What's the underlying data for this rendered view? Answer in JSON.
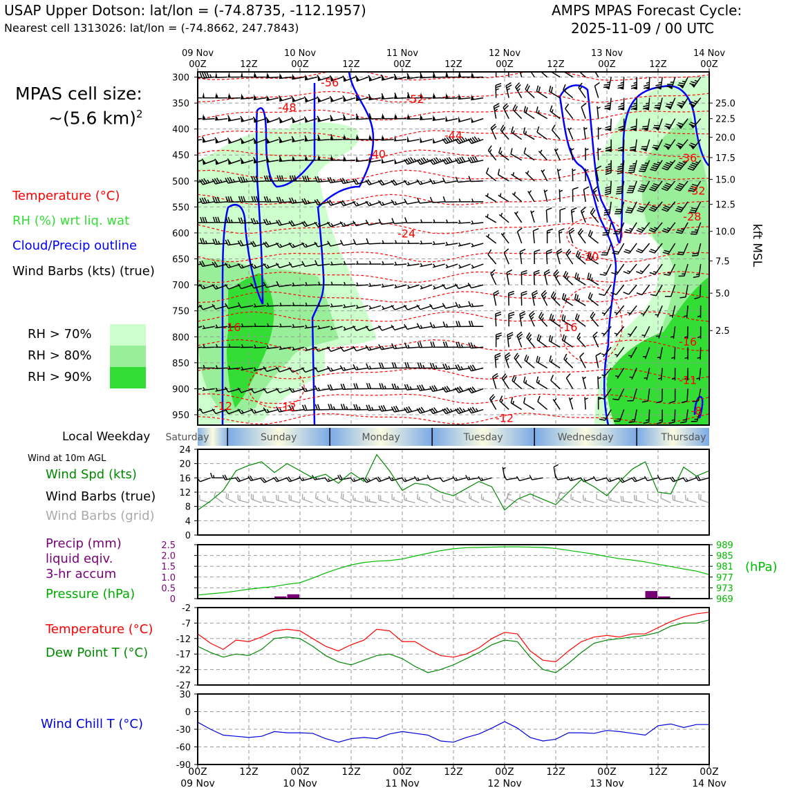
{
  "header": {
    "station_title": "USAP Upper Dotson: lat/lon = (-74.8735, -112.1957)",
    "nearest_cell": "Nearest cell 1313026: lat/lon = (-74.8662, 247.7843)",
    "cycle_title": "AMPS MPAS Forecast Cycle:",
    "cycle_time": "2025-11-09 / 00 UTC"
  },
  "left_panel": {
    "cell_size_label": "MPAS cell size:",
    "cell_size_value": "~(5.6 km)",
    "cell_size_exp": "2",
    "legend_temperature": "Temperature (°C)",
    "legend_rh": "RH (%) wrt liq. wat",
    "legend_cloud": "Cloud/Precip outline",
    "legend_wind": "Wind Barbs (kts) (true)",
    "rh70": "RH > 70%",
    "rh80": "RH > 80%",
    "rh90": "RH > 90%",
    "local_weekday": "Local Weekday",
    "wind10m": "Wind at 10m AGL",
    "wind_spd": "Wind Spd (kts)",
    "wind_barbs_true": "Wind Barbs (true)",
    "wind_barbs_grid": "Wind Barbs (grid)",
    "precip_l1": "Precip (mm)",
    "precip_l2": "liquid eqiv.",
    "precip_l3": "3-hr accum",
    "pressure": "Pressure (hPa)",
    "temp": "Temperature (°C)",
    "dewpoint": "Dew Point T (°C)",
    "windchill": "Wind Chill T (°C)"
  },
  "colors": {
    "temperature": "#ff0000",
    "rh": "#33cc33",
    "cloud": "#0000ff",
    "wind": "#000000",
    "grid_wind": "#aaaaaa",
    "precip": "#770077",
    "pressure": "#00bb00",
    "dewpoint": "#008800",
    "windchill": "#0000dd",
    "rh70": "#ccffcc",
    "rh80": "#99ee99",
    "rh90": "#33dd33"
  },
  "chart_data": {
    "time_axis": {
      "top_days": [
        "09 Nov",
        "10 Nov",
        "11 Nov",
        "12 Nov",
        "13 Nov",
        "14 Nov"
      ],
      "top_hours": [
        "00Z",
        "12Z",
        "00Z",
        "12Z",
        "00Z",
        "12Z",
        "00Z",
        "12Z",
        "00Z",
        "12Z",
        "00Z"
      ],
      "bottom_hours": [
        "00Z",
        "12Z",
        "00Z",
        "12Z",
        "00Z",
        "12Z",
        "00Z",
        "12Z",
        "00Z",
        "12Z",
        "00Z"
      ],
      "bottom_days": [
        "09 Nov",
        "10 Nov",
        "11 Nov",
        "12 Nov",
        "13 Nov",
        "14 Nov"
      ],
      "hours_range": [
        0,
        120
      ]
    },
    "profile": {
      "type": "heatmap",
      "pressure_ticks": [
        "300",
        "350",
        "400",
        "450",
        "500",
        "550",
        "600",
        "650",
        "700",
        "750",
        "800",
        "850",
        "900",
        "950"
      ],
      "kft_ticks": [
        "25.0",
        "22.5",
        "20.0",
        "17.5",
        "15.0",
        "12.5",
        "10.0",
        "7.5",
        "5.0",
        "2.5"
      ],
      "kft_pressure": [
        350,
        380,
        416,
        455,
        497,
        545,
        597,
        654,
        716,
        788,
        872
      ],
      "kft_label": "kft MSL",
      "ylim_hpa": [
        290,
        970
      ],
      "temperature_labels": [
        {
          "text": "-56",
          "hour": 31,
          "hpa": 310
        },
        {
          "text": "-52",
          "hour": 51,
          "hpa": 342
        },
        {
          "text": "-48",
          "hour": 21,
          "hpa": 358
        },
        {
          "text": "-44",
          "hour": 60,
          "hpa": 412
        },
        {
          "text": "-40",
          "hour": 42,
          "hpa": 448
        },
        {
          "text": "-36",
          "hour": 115,
          "hpa": 455
        },
        {
          "text": "-32",
          "hour": 117,
          "hpa": 518
        },
        {
          "text": "-28",
          "hour": 116,
          "hpa": 568
        },
        {
          "text": "-24",
          "hour": 49,
          "hpa": 601
        },
        {
          "text": "-20",
          "hour": 92,
          "hpa": 645
        },
        {
          "text": "-16",
          "hour": 8,
          "hpa": 781
        },
        {
          "text": "-16",
          "hour": 87,
          "hpa": 781
        },
        {
          "text": "-16",
          "hour": 115,
          "hpa": 809
        },
        {
          "text": "-11",
          "hour": 115,
          "hpa": 883
        },
        {
          "text": "-12",
          "hour": 6,
          "hpa": 933
        },
        {
          "text": "-12",
          "hour": 21,
          "hpa": 935
        },
        {
          "text": "-12",
          "hour": 72,
          "hpa": 956
        },
        {
          "text": "-8",
          "hour": 117,
          "hpa": 942
        }
      ]
    },
    "weekdays": [
      "Saturday",
      "Sunday",
      "Monday",
      "Tuesday",
      "Wednesday",
      "Thursday"
    ],
    "wind10m": {
      "type": "line",
      "yticks": [
        "24",
        "20",
        "16",
        "12",
        "8",
        "4",
        "0"
      ],
      "ylim": [
        0,
        24
      ],
      "hours": [
        0,
        3,
        6,
        9,
        12,
        15,
        18,
        21,
        24,
        27,
        30,
        33,
        36,
        39,
        42,
        45,
        48,
        51,
        54,
        57,
        60,
        63,
        66,
        69,
        72,
        75,
        78,
        81,
        84,
        87,
        90,
        93,
        96,
        99,
        102,
        105,
        108,
        111,
        114,
        117,
        120
      ],
      "speed": [
        7,
        9.5,
        12.5,
        18,
        19.5,
        20.5,
        17.5,
        20,
        18,
        16,
        17,
        14.5,
        17.5,
        15,
        22.5,
        18,
        12.5,
        14.5,
        14,
        12,
        11,
        13,
        15,
        13.5,
        7,
        10,
        11.5,
        10,
        8.5,
        12,
        15.5,
        13.5,
        11,
        15,
        18.5,
        20.5,
        12,
        11.5,
        19,
        16.5,
        18
      ],
      "direction": [
        300,
        250,
        270,
        260,
        250,
        255,
        245,
        250,
        250,
        255,
        260,
        250,
        260,
        250,
        245,
        250,
        255,
        250,
        255,
        260,
        250,
        255,
        260,
        255,
        350,
        260,
        255,
        260,
        350,
        260,
        255,
        250,
        255,
        250,
        245,
        250,
        255,
        260,
        250,
        250,
        255
      ]
    },
    "precip_pressure": {
      "type": "bar",
      "precip_yticks": [
        "2.5",
        "2.0",
        "1.5",
        "1.0",
        "0.5",
        "0"
      ],
      "precip_ylim": [
        0,
        2.5
      ],
      "pressure_yticks": [
        "989",
        "985",
        "981",
        "977",
        "973",
        "969"
      ],
      "pressure_ylim": [
        969,
        989
      ],
      "pressure_unit": "(hPa)",
      "precip_hours": [
        21,
        24,
        108,
        111
      ],
      "precip_mm": [
        0.1,
        0.2,
        0.35,
        0.1
      ],
      "pressure_hours": [
        0,
        3,
        6,
        9,
        12,
        15,
        18,
        21,
        24,
        27,
        30,
        33,
        36,
        39,
        42,
        45,
        48,
        51,
        54,
        57,
        60,
        63,
        66,
        69,
        72,
        75,
        78,
        81,
        84,
        87,
        90,
        93,
        96,
        99,
        102,
        105,
        108,
        111,
        114,
        117,
        120
      ],
      "pressure_hpa": [
        970.3,
        970.8,
        971.2,
        971.8,
        972.5,
        973.0,
        973.5,
        974.3,
        974.9,
        976.6,
        978.5,
        980.1,
        981.5,
        982.4,
        982.9,
        983.1,
        983.7,
        984.8,
        985.8,
        986.8,
        987.5,
        987.9,
        988.0,
        988.1,
        988.2,
        988.2,
        988.1,
        988.0,
        987.6,
        986.9,
        986.2,
        985.5,
        984.6,
        983.8,
        983.3,
        982.6,
        981.7,
        980.9,
        980.0,
        979.2,
        977.9
      ]
    },
    "temp_dew": {
      "type": "line",
      "yticks": [
        "-2",
        "-7",
        "-12",
        "-17",
        "-22",
        "-27"
      ],
      "ylim": [
        -27,
        -2
      ],
      "hours": [
        0,
        3,
        6,
        9,
        12,
        15,
        18,
        21,
        24,
        27,
        30,
        33,
        36,
        39,
        42,
        45,
        48,
        51,
        54,
        57,
        60,
        63,
        66,
        69,
        72,
        75,
        78,
        81,
        84,
        87,
        90,
        93,
        96,
        99,
        102,
        105,
        108,
        111,
        114,
        117,
        120
      ],
      "temperature": [
        -10.5,
        -13.5,
        -15.5,
        -12.5,
        -13,
        -11.5,
        -9.5,
        -9,
        -9.5,
        -12,
        -14.5,
        -16,
        -14,
        -12.5,
        -9,
        -9.5,
        -13,
        -13,
        -15.5,
        -17.5,
        -18,
        -17,
        -15,
        -12,
        -10,
        -10.5,
        -16,
        -19,
        -19.5,
        -16,
        -13,
        -11.5,
        -11,
        -11.5,
        -10.5,
        -10.5,
        -8.5,
        -6.5,
        -5,
        -4,
        -3.5
      ],
      "dewpoint": [
        -14.5,
        -16.5,
        -18,
        -17,
        -17.5,
        -15.5,
        -12,
        -11.5,
        -12,
        -14.5,
        -17.5,
        -19.5,
        -20.5,
        -19,
        -17.5,
        -17,
        -18.5,
        -21,
        -23,
        -22,
        -20.5,
        -18.5,
        -16.5,
        -14,
        -12.5,
        -13,
        -18,
        -22,
        -23,
        -20,
        -16.5,
        -13.5,
        -12.5,
        -12,
        -11.5,
        -11,
        -10,
        -8,
        -7,
        -7,
        -6
      ]
    },
    "windchill": {
      "type": "line",
      "yticks": [
        "30",
        "0",
        "-30",
        "-60",
        "-90"
      ],
      "ylim": [
        -90,
        30
      ],
      "hours": [
        0,
        3,
        6,
        9,
        12,
        15,
        18,
        21,
        24,
        27,
        30,
        33,
        36,
        39,
        42,
        45,
        48,
        51,
        54,
        57,
        60,
        63,
        66,
        69,
        72,
        75,
        78,
        81,
        84,
        87,
        90,
        93,
        96,
        99,
        102,
        105,
        108,
        111,
        114,
        117,
        120
      ],
      "values": [
        -18,
        -30,
        -40,
        -42,
        -44,
        -42,
        -34,
        -36,
        -36,
        -37,
        -46,
        -52,
        -46,
        -44,
        -46,
        -38,
        -34,
        -37,
        -40,
        -50,
        -52,
        -44,
        -38,
        -28,
        -17,
        -28,
        -44,
        -50,
        -47,
        -36,
        -36,
        -37,
        -32,
        -34,
        -37,
        -40,
        -24,
        -21,
        -27,
        -22,
        -22
      ]
    }
  }
}
